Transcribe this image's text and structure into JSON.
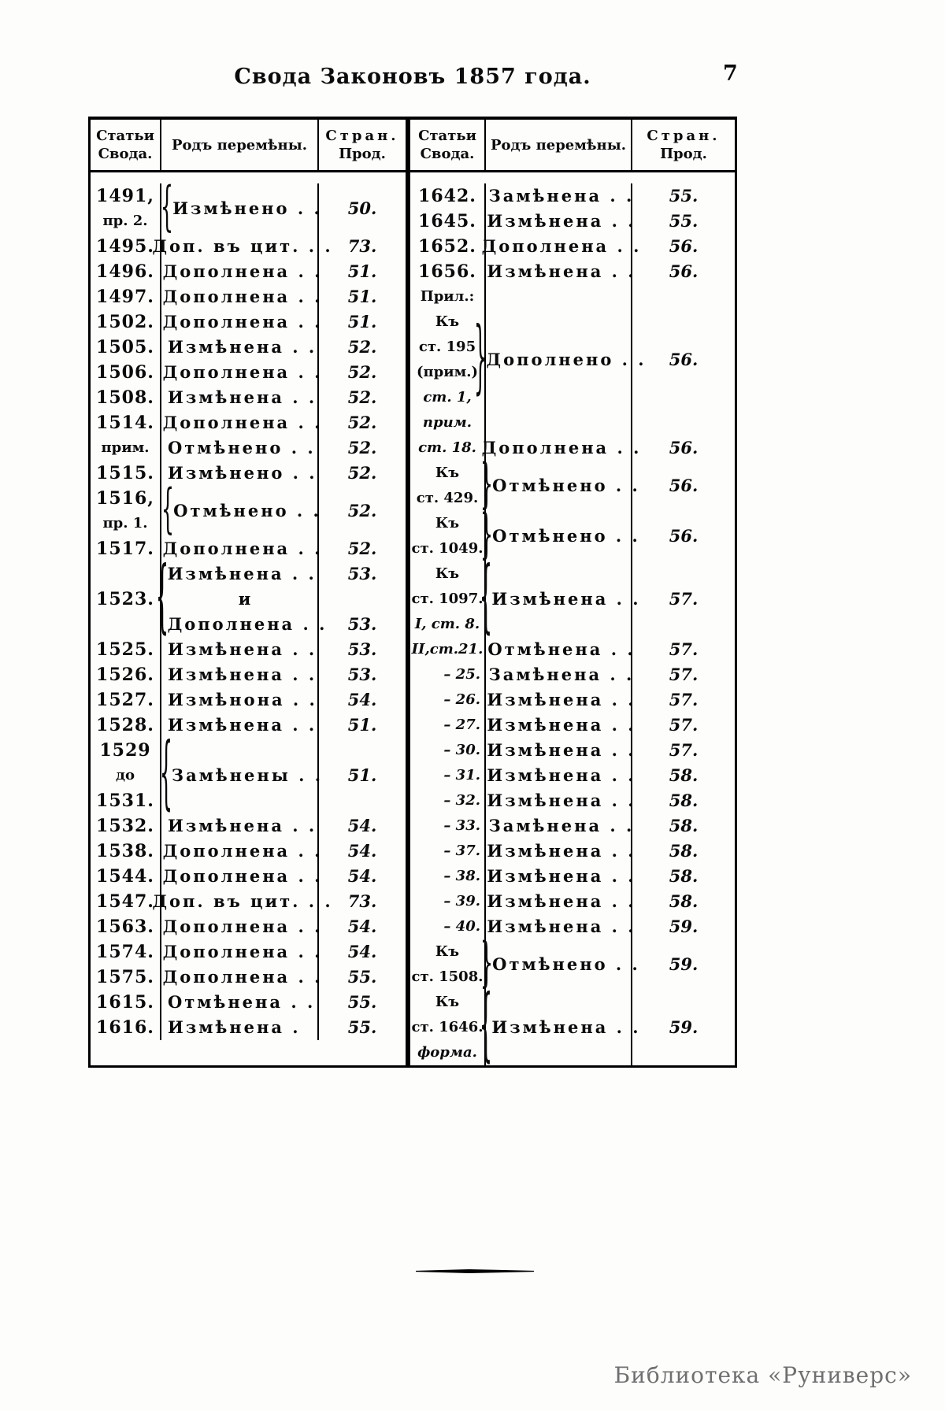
{
  "page": {
    "title": "Свода Законовъ 1857 года.",
    "page_number": "7",
    "watermark": "Библиотека «Руниверс»"
  },
  "table_headers": {
    "articles_line1": "Статьи",
    "articles_line2": "Свода.",
    "change": "Родъ перемѣны.",
    "pages_line1": "Стран.",
    "pages_line2": "Прод."
  },
  "left_rows": [
    {
      "a": [
        "1491,",
        {
          "t": "пр. 2.",
          "s": true
        }
      ],
      "b": "{",
      "ch": [
        "Измѣнено . ."
      ],
      "p": [
        "50."
      ]
    },
    {
      "a": [
        "1495."
      ],
      "ch": [
        "Доп. въ цит. . ."
      ],
      "p": [
        "73."
      ]
    },
    {
      "a": [
        "1496."
      ],
      "ch": [
        "Дополнена . ."
      ],
      "p": [
        "51."
      ]
    },
    {
      "a": [
        "1497."
      ],
      "ch": [
        "Дополнена . ."
      ],
      "p": [
        "51."
      ]
    },
    {
      "a": [
        "1502."
      ],
      "ch": [
        "Дополнена . ."
      ],
      "p": [
        "51."
      ]
    },
    {
      "a": [
        "1505."
      ],
      "ch": [
        "Измѣнена . ."
      ],
      "p": [
        "52."
      ]
    },
    {
      "a": [
        "1506."
      ],
      "ch": [
        "Дополнена . ."
      ],
      "p": [
        "52."
      ]
    },
    {
      "a": [
        "1508."
      ],
      "ch": [
        "Измѣнена . ."
      ],
      "p": [
        "52."
      ]
    },
    {
      "a": [
        "1514."
      ],
      "ch": [
        "Дополнена . ."
      ],
      "p": [
        "52."
      ]
    },
    {
      "a": [
        {
          "t": "прим.",
          "s": true
        }
      ],
      "ch": [
        "Отмѣнено . ."
      ],
      "p": [
        "52."
      ]
    },
    {
      "a": [
        "1515."
      ],
      "ch": [
        "Измѣнено . ."
      ],
      "p": [
        "52."
      ]
    },
    {
      "a": [
        "1516,",
        {
          "t": "пр. 1.",
          "s": true
        }
      ],
      "b": "{",
      "ch": [
        "Отмѣнено . ."
      ],
      "p": [
        "52."
      ]
    },
    {
      "a": [
        "1517."
      ],
      "ch": [
        "Дополнена . ."
      ],
      "p": [
        "52."
      ]
    },
    {
      "a": [
        "1523."
      ],
      "b": "{",
      "ch": [
        "Измѣнена . .",
        {
          "t": "и",
          "c": true
        },
        "Дополнена . ."
      ],
      "p": [
        "53.",
        "",
        "53."
      ]
    },
    {
      "a": [
        "1525."
      ],
      "ch": [
        "Измѣнена . ."
      ],
      "p": [
        "53."
      ]
    },
    {
      "a": [
        "1526."
      ],
      "ch": [
        "Измѣнена . ."
      ],
      "p": [
        "53."
      ]
    },
    {
      "a": [
        "1527."
      ],
      "ch": [
        "Измѣнона . ."
      ],
      "p": [
        "54."
      ]
    },
    {
      "a": [
        "1528."
      ],
      "ch": [
        "Измѣнена . ."
      ],
      "p": [
        "51."
      ]
    },
    {
      "a": [
        "1529",
        {
          "t": "до",
          "s": true
        },
        "1531."
      ],
      "b": "{",
      "ch": [
        "Замѣнены . ."
      ],
      "p": [
        "51."
      ]
    },
    {
      "a": [
        "1532."
      ],
      "ch": [
        "Измѣнена . ."
      ],
      "p": [
        "54."
      ]
    },
    {
      "a": [
        "1538."
      ],
      "ch": [
        "Дополнена . ."
      ],
      "p": [
        "54."
      ]
    },
    {
      "a": [
        "1544."
      ],
      "ch": [
        "Дополнена . ."
      ],
      "p": [
        "54."
      ]
    },
    {
      "a": [
        "1547."
      ],
      "ch": [
        "Доп. въ цит. . ."
      ],
      "p": [
        "73."
      ]
    },
    {
      "a": [
        "1563."
      ],
      "ch": [
        "Дополнена . ."
      ],
      "p": [
        "54."
      ]
    },
    {
      "a": [
        "1574."
      ],
      "ch": [
        "Дополнена . ."
      ],
      "p": [
        "54."
      ]
    },
    {
      "a": [
        "1575."
      ],
      "ch": [
        "Дополнена . ."
      ],
      "p": [
        "55."
      ]
    },
    {
      "a": [
        "1615."
      ],
      "ch": [
        "Отмѣнена . ."
      ],
      "p": [
        "55."
      ]
    },
    {
      "a": [
        "1616."
      ],
      "ch": [
        "Измѣнена ."
      ],
      "p": [
        "55."
      ]
    }
  ],
  "right_rows": [
    {
      "a": [
        "1642."
      ],
      "ch": [
        "Замѣнена . ."
      ],
      "p": [
        "55."
      ]
    },
    {
      "a": [
        "1645."
      ],
      "ch": [
        "Измѣнена . ."
      ],
      "p": [
        "55."
      ]
    },
    {
      "a": [
        "1652."
      ],
      "ch": [
        "Дополнена . ."
      ],
      "p": [
        "56."
      ]
    },
    {
      "a": [
        "1656."
      ],
      "ch": [
        "Измѣнена . ."
      ],
      "p": [
        "56."
      ]
    },
    {
      "a": [
        {
          "t": "Прил.:",
          "s": true
        },
        {
          "t": "Къ",
          "s": true
        },
        {
          "t": "ст. 195",
          "s": true
        },
        {
          "t": "(прим.)",
          "s": true
        },
        {
          "t": "ст. 1,",
          "s": true,
          "i": true
        },
        {
          "t": "прим.",
          "s": true,
          "i": true
        }
      ],
      "b": "}",
      "ch": [
        "Дополнено . ."
      ],
      "p": [
        "56."
      ]
    },
    {
      "a": [
        {
          "t": "ст. 18.",
          "s": true,
          "i": true
        }
      ],
      "ch": [
        "Дополнена . ."
      ],
      "p": [
        "56."
      ]
    },
    {
      "a": [
        {
          "t": "Къ",
          "s": true
        },
        {
          "t": "ст. 429.",
          "s": true
        }
      ],
      "b": "}",
      "ch": [
        "Отмѣнено . ."
      ],
      "p": [
        "56."
      ]
    },
    {
      "a": [
        {
          "t": "Къ",
          "s": true
        },
        {
          "t": "ст. 1049.",
          "s": true
        }
      ],
      "b": "}",
      "ch": [
        "Отмѣнено . ."
      ],
      "p": [
        "56."
      ]
    },
    {
      "a": [
        {
          "t": "Къ",
          "s": true
        },
        {
          "t": "ст. 1097.",
          "s": true
        },
        {
          "t": "I, ст. 8.",
          "s": true,
          "i": true
        }
      ],
      "b": "{",
      "ch": [
        "Измѣнена . ."
      ],
      "p": [
        "57."
      ]
    },
    {
      "a": [
        {
          "t": "II,ст.21.",
          "s": true,
          "i": true
        }
      ],
      "ch": [
        "Отмѣнена . ."
      ],
      "p": [
        "57."
      ]
    },
    {
      "a": [
        {
          "t": "– 25.",
          "s": true,
          "i": true,
          "r": true
        }
      ],
      "ch": [
        "Замѣнена . ."
      ],
      "p": [
        "57."
      ]
    },
    {
      "a": [
        {
          "t": "– 26.",
          "s": true,
          "i": true,
          "r": true
        }
      ],
      "ch": [
        "Измѣнена . ."
      ],
      "p": [
        "57."
      ]
    },
    {
      "a": [
        {
          "t": "– 27.",
          "s": true,
          "i": true,
          "r": true
        }
      ],
      "ch": [
        "Измѣнена . ."
      ],
      "p": [
        "57."
      ]
    },
    {
      "a": [
        {
          "t": "– 30.",
          "s": true,
          "i": true,
          "r": true
        }
      ],
      "ch": [
        "Измѣнена . ."
      ],
      "p": [
        "57."
      ]
    },
    {
      "a": [
        {
          "t": "– 31.",
          "s": true,
          "i": true,
          "r": true
        }
      ],
      "ch": [
        "Измѣнена . ."
      ],
      "p": [
        "58."
      ]
    },
    {
      "a": [
        {
          "t": "– 32.",
          "s": true,
          "i": true,
          "r": true
        }
      ],
      "ch": [
        "Измѣнена . ."
      ],
      "p": [
        "58."
      ]
    },
    {
      "a": [
        {
          "t": "– 33.",
          "s": true,
          "i": true,
          "r": true
        }
      ],
      "ch": [
        "Замѣнена . ."
      ],
      "p": [
        "58."
      ]
    },
    {
      "a": [
        {
          "t": "– 37.",
          "s": true,
          "i": true,
          "r": true
        }
      ],
      "ch": [
        "Измѣнена . ."
      ],
      "p": [
        "58."
      ]
    },
    {
      "a": [
        {
          "t": "– 38.",
          "s": true,
          "i": true,
          "r": true
        }
      ],
      "ch": [
        "Измѣнена . ."
      ],
      "p": [
        "58."
      ]
    },
    {
      "a": [
        {
          "t": "– 39.",
          "s": true,
          "i": true,
          "r": true
        }
      ],
      "ch": [
        "Измѣнена . ."
      ],
      "p": [
        "58."
      ]
    },
    {
      "a": [
        {
          "t": "– 40.",
          "s": true,
          "i": true,
          "r": true
        }
      ],
      "ch": [
        "Измѣнена . ."
      ],
      "p": [
        "59."
      ]
    },
    {
      "a": [
        {
          "t": "Къ",
          "s": true
        },
        {
          "t": "ст. 1508.",
          "s": true
        }
      ],
      "b": "}",
      "ch": [
        "Отмѣнено . ."
      ],
      "p": [
        "59."
      ]
    },
    {
      "a": [
        {
          "t": "Къ",
          "s": true
        },
        {
          "t": "ст. 1646.",
          "s": true
        },
        {
          "t": "форма.",
          "s": true,
          "i": true
        }
      ],
      "b": "{",
      "ch": [
        "Измѣнена . ."
      ],
      "p": [
        "59."
      ]
    }
  ]
}
